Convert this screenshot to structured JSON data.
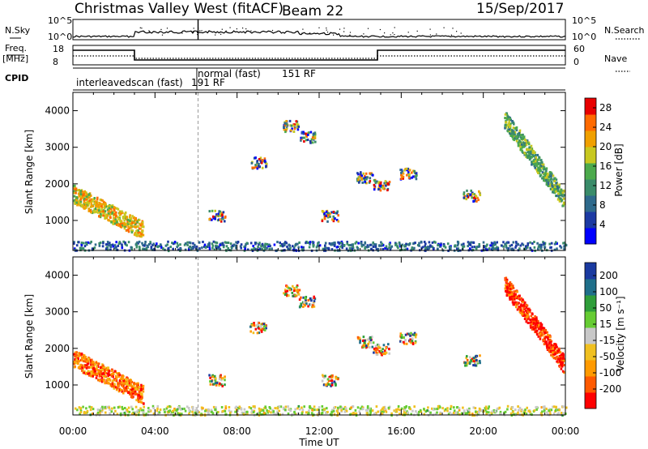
{
  "header": {
    "site": "Christmas Valley West (fitACF)",
    "beam": "Beam 22",
    "date": "15/Sep/2017"
  },
  "labels": {
    "nsky": "N.Sky",
    "nsearch": "N.Search",
    "freq": "Freq.",
    "mhz": "[MHz]",
    "nave": "Nave",
    "cpid": "CPID",
    "nsky_ticks": [
      "10^5",
      "10^0"
    ],
    "freq_ticks": [
      "18",
      "8"
    ],
    "nave_ticks": [
      "60",
      "0"
    ]
  },
  "cpid": {
    "modes": [
      {
        "name": "interleavedscan (fast)",
        "rf": "191 RF"
      },
      {
        "name": "normal (fast)",
        "rf": "151 RF"
      }
    ]
  },
  "colors": {
    "power": [
      "#0000ff",
      "#1c3aa3",
      "#2e6a8c",
      "#3a8c6a",
      "#4caa4c",
      "#c8c820",
      "#f0a000",
      "#ff6a00",
      "#e80000"
    ],
    "velocity": [
      "#ff0000",
      "#ff5a00",
      "#ff9a00",
      "#f0c020",
      "#c8c8c8",
      "#66cc33",
      "#2f9e3a",
      "#1f6f8a",
      "#1a3aa0"
    ]
  },
  "chart_data": [
    {
      "type": "heatmap",
      "title": "",
      "xlabel": "",
      "ylabel": "Slant Range [km]",
      "xlim": [
        "00:00",
        "24:00"
      ],
      "ylim": [
        180,
        4500
      ],
      "x_ticks": [
        "00:00",
        "04:00",
        "08:00",
        "12:00",
        "16:00",
        "20:00",
        "00:00"
      ],
      "y_ticks": [
        1000,
        2000,
        3000,
        4000
      ],
      "colorbar": {
        "label": "Power [dB]",
        "ticks": [
          4,
          8,
          12,
          16,
          20,
          24,
          28
        ],
        "range": [
          0,
          30
        ]
      },
      "features": [
        {
          "t_start": 0.0,
          "t_end": 3.4,
          "range_start": 1750,
          "range_end": 750,
          "value": 20
        },
        {
          "t_start": 0.0,
          "t_end": 24.0,
          "range_start": 250,
          "range_end": 250,
          "value": 8
        },
        {
          "t_start": 21.0,
          "t_end": 23.9,
          "range_start": 3800,
          "range_end": 1600,
          "value": 14
        }
      ]
    },
    {
      "type": "heatmap",
      "title": "",
      "xlabel": "Time UT",
      "ylabel": "Slant Range [km]",
      "xlim": [
        "00:00",
        "24:00"
      ],
      "ylim": [
        180,
        4500
      ],
      "x_ticks": [
        "00:00",
        "04:00",
        "08:00",
        "12:00",
        "16:00",
        "20:00",
        "00:00"
      ],
      "y_ticks": [
        1000,
        2000,
        3000,
        4000
      ],
      "colorbar": {
        "label": "Velocity [m s⁻¹]",
        "ticks": [
          200,
          100,
          50,
          15,
          -15,
          -50,
          -100,
          -200
        ],
        "range": [
          -250,
          250
        ]
      },
      "features": [
        {
          "t_start": 0.0,
          "t_end": 3.4,
          "range_start": 1750,
          "range_end": 750,
          "value": -150
        },
        {
          "t_start": 0.0,
          "t_end": 24.0,
          "range_start": 250,
          "range_end": 250,
          "value": 0
        },
        {
          "t_start": 21.0,
          "t_end": 23.9,
          "range_start": 3800,
          "range_end": 1600,
          "value": -200
        }
      ]
    }
  ]
}
